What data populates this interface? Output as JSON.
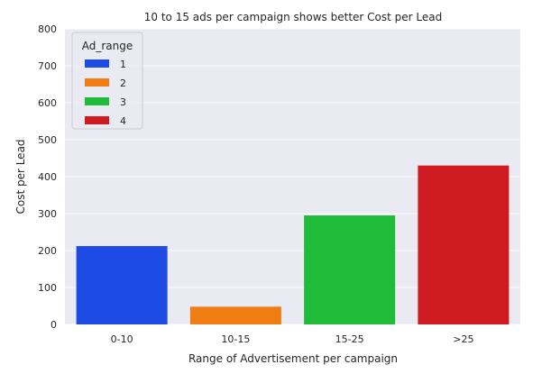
{
  "chart_data": {
    "type": "bar",
    "title": "10 to 15 ads per campaign shows better Cost per Lead",
    "xlabel": "Range of Advertisement per campaign",
    "ylabel": "Cost per Lead",
    "categories": [
      "0-10",
      "10-15",
      "15-25",
      ">25"
    ],
    "values": [
      212,
      48,
      295,
      430
    ],
    "ylim": [
      0,
      800
    ],
    "yticks": [
      0,
      100,
      200,
      300,
      400,
      500,
      600,
      700,
      800
    ],
    "grid": true,
    "legend": {
      "title": "Ad_range",
      "placement": "top-left",
      "entries": [
        "1",
        "2",
        "3",
        "4"
      ]
    },
    "colors": [
      "#1e4be3",
      "#f07d13",
      "#20bb38",
      "#cf1a21"
    ],
    "plot_background": "#eaeaf2",
    "grid_color": "#ffffff"
  }
}
